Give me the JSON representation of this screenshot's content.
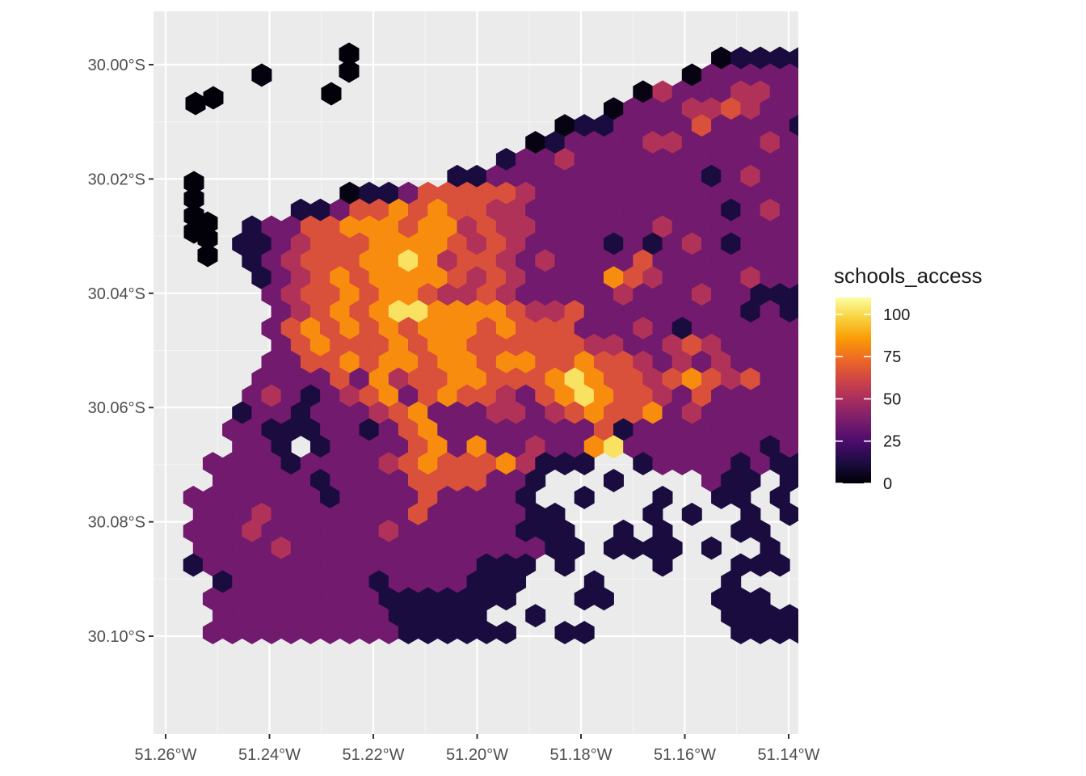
{
  "map": {
    "background": "#ebebeb",
    "grid_color": "#ffffff",
    "x_axis": {
      "ticks": [
        {
          "value": -51.26,
          "label": "51.26°W"
        },
        {
          "value": -51.24,
          "label": "51.24°W"
        },
        {
          "value": -51.22,
          "label": "51.22°W"
        },
        {
          "value": -51.2,
          "label": "51.20°W"
        },
        {
          "value": -51.18,
          "label": "51.18°W"
        },
        {
          "value": -51.16,
          "label": "51.16°W"
        },
        {
          "value": -51.14,
          "label": "51.14°W"
        }
      ]
    },
    "y_axis": {
      "ticks": [
        {
          "value": -30.0,
          "label": "30.00°S"
        },
        {
          "value": -30.02,
          "label": "30.02°S"
        },
        {
          "value": -30.04,
          "label": "30.04°S"
        },
        {
          "value": -30.06,
          "label": "30.06°S"
        },
        {
          "value": -30.08,
          "label": "30.08°S"
        },
        {
          "value": -30.1,
          "label": "30.10°S"
        }
      ]
    },
    "hexbin_layer": {
      "description": "Hexagonal grid of schools_access values over the study area",
      "rows": [
        "............................|:::::;::::..",
        "....#.....................|;;;;;::;;;:;;;",
        "........................|=;;;==;;;;:;;:;;:",
        "......................|;;;==+=;;;;;;;;;;;",
        "....................|::;;;;+;;;;:;;;;;;;:",
        "..................|:;;;;==;;;;=;;;;;;;;;:",
        ".................:;;=;;;;;;;;;;;;:;;;;;;;",
        "..............::;;;;;;;;;;;:;=;;;;;;;;;;;",
        ".........|::;+++++=;;;;;;;;;;;;;;;;;;;:",
        "......::;++*+*++==;;;;;;;;;;:;=;;;;;;;;",
        "....:;;++***+**=+==;;;;;;=;;;;;;;;;;;:",
        "...::;=+++****+=+=;;;;:;:;=;:;;;;;;;;;",
        "....:;=+++**@*=++=;=;;;;+;;;;;;;;;;;;",
        "....:;=+*+****+=+=;;;;*+=;;;;=;;;;::;",
        ".....;=++*+**+==+=;;;;;=;;;=;;::::;::",
        ".....;=+*+*@@****+==+;;;;;;;;:;::;;;",
        ".....;+*+*+*+***+*+++;;;=;:;;;;;;:;=.",
        ".....;+*+++*+**++++++==;;=+=;;;;;;::",
        ".....;;++*+**+**+**++*++=;=;=;;;;;:.",
        "....;;;;+;*=++**+++*@*++=+*+=+;;;;:;",
        "....;=;:;=+*;+*++=;+*@*++=;+;;;;;::;",
        "...:;;:;;;=+*;;;==;=+*++*;=;;;;;::;:",
        "...;;:::;;:;+*;;;;;;;;+:;;;;;;;;;;;;",
        "...;;:.:;;;;+*;*;;=;;*@;;;;;;;:;;::",
        "..;;;;:;;;;=+*+++*=:::..:;;;;:;::...",
        "..;;;;;:;;;;++++;;:...:....;::.:.:..",
        ".;;;;;;;:;;;;+;;;;:..:...:..::.:....",
        ".;;;=;;;;;;;+;;;;;::....:.:..:.:....",
        ".;;;=;;;;;;=;;;;;;:::..:.:...::..::.",
        ".;;;;=;;;;;;;;;;;;;::.::::.:..:.::::",
        ".:;;;;;;;;;;;;;;:::.:....:...:::..:.",
        "..:;;;;;;;:;;;;:::...:......:.....::",
        "..;;;;;;;;;:::::::...::.....:::..:::",
        "..;;;;;;;;;:::::..:.........:::::::.",
        "..;;;;;;;;;;::::::..::.......::::::."
      ]
    }
  },
  "legend": {
    "title": "schools_access",
    "gradient_stops": [
      "#000004",
      "#1b0c41",
      "#4a0c6b",
      "#781c6d",
      "#a52c60",
      "#cf4446",
      "#ed6925",
      "#fb9b06",
      "#f7d13d",
      "#fcffa4"
    ],
    "range": [
      0,
      110
    ],
    "ticks": [
      {
        "value": 100,
        "label": "100"
      },
      {
        "value": 75,
        "label": "75"
      },
      {
        "value": 50,
        "label": "50"
      },
      {
        "value": 25,
        "label": "25"
      },
      {
        "value": 0,
        "label": "0"
      }
    ]
  }
}
